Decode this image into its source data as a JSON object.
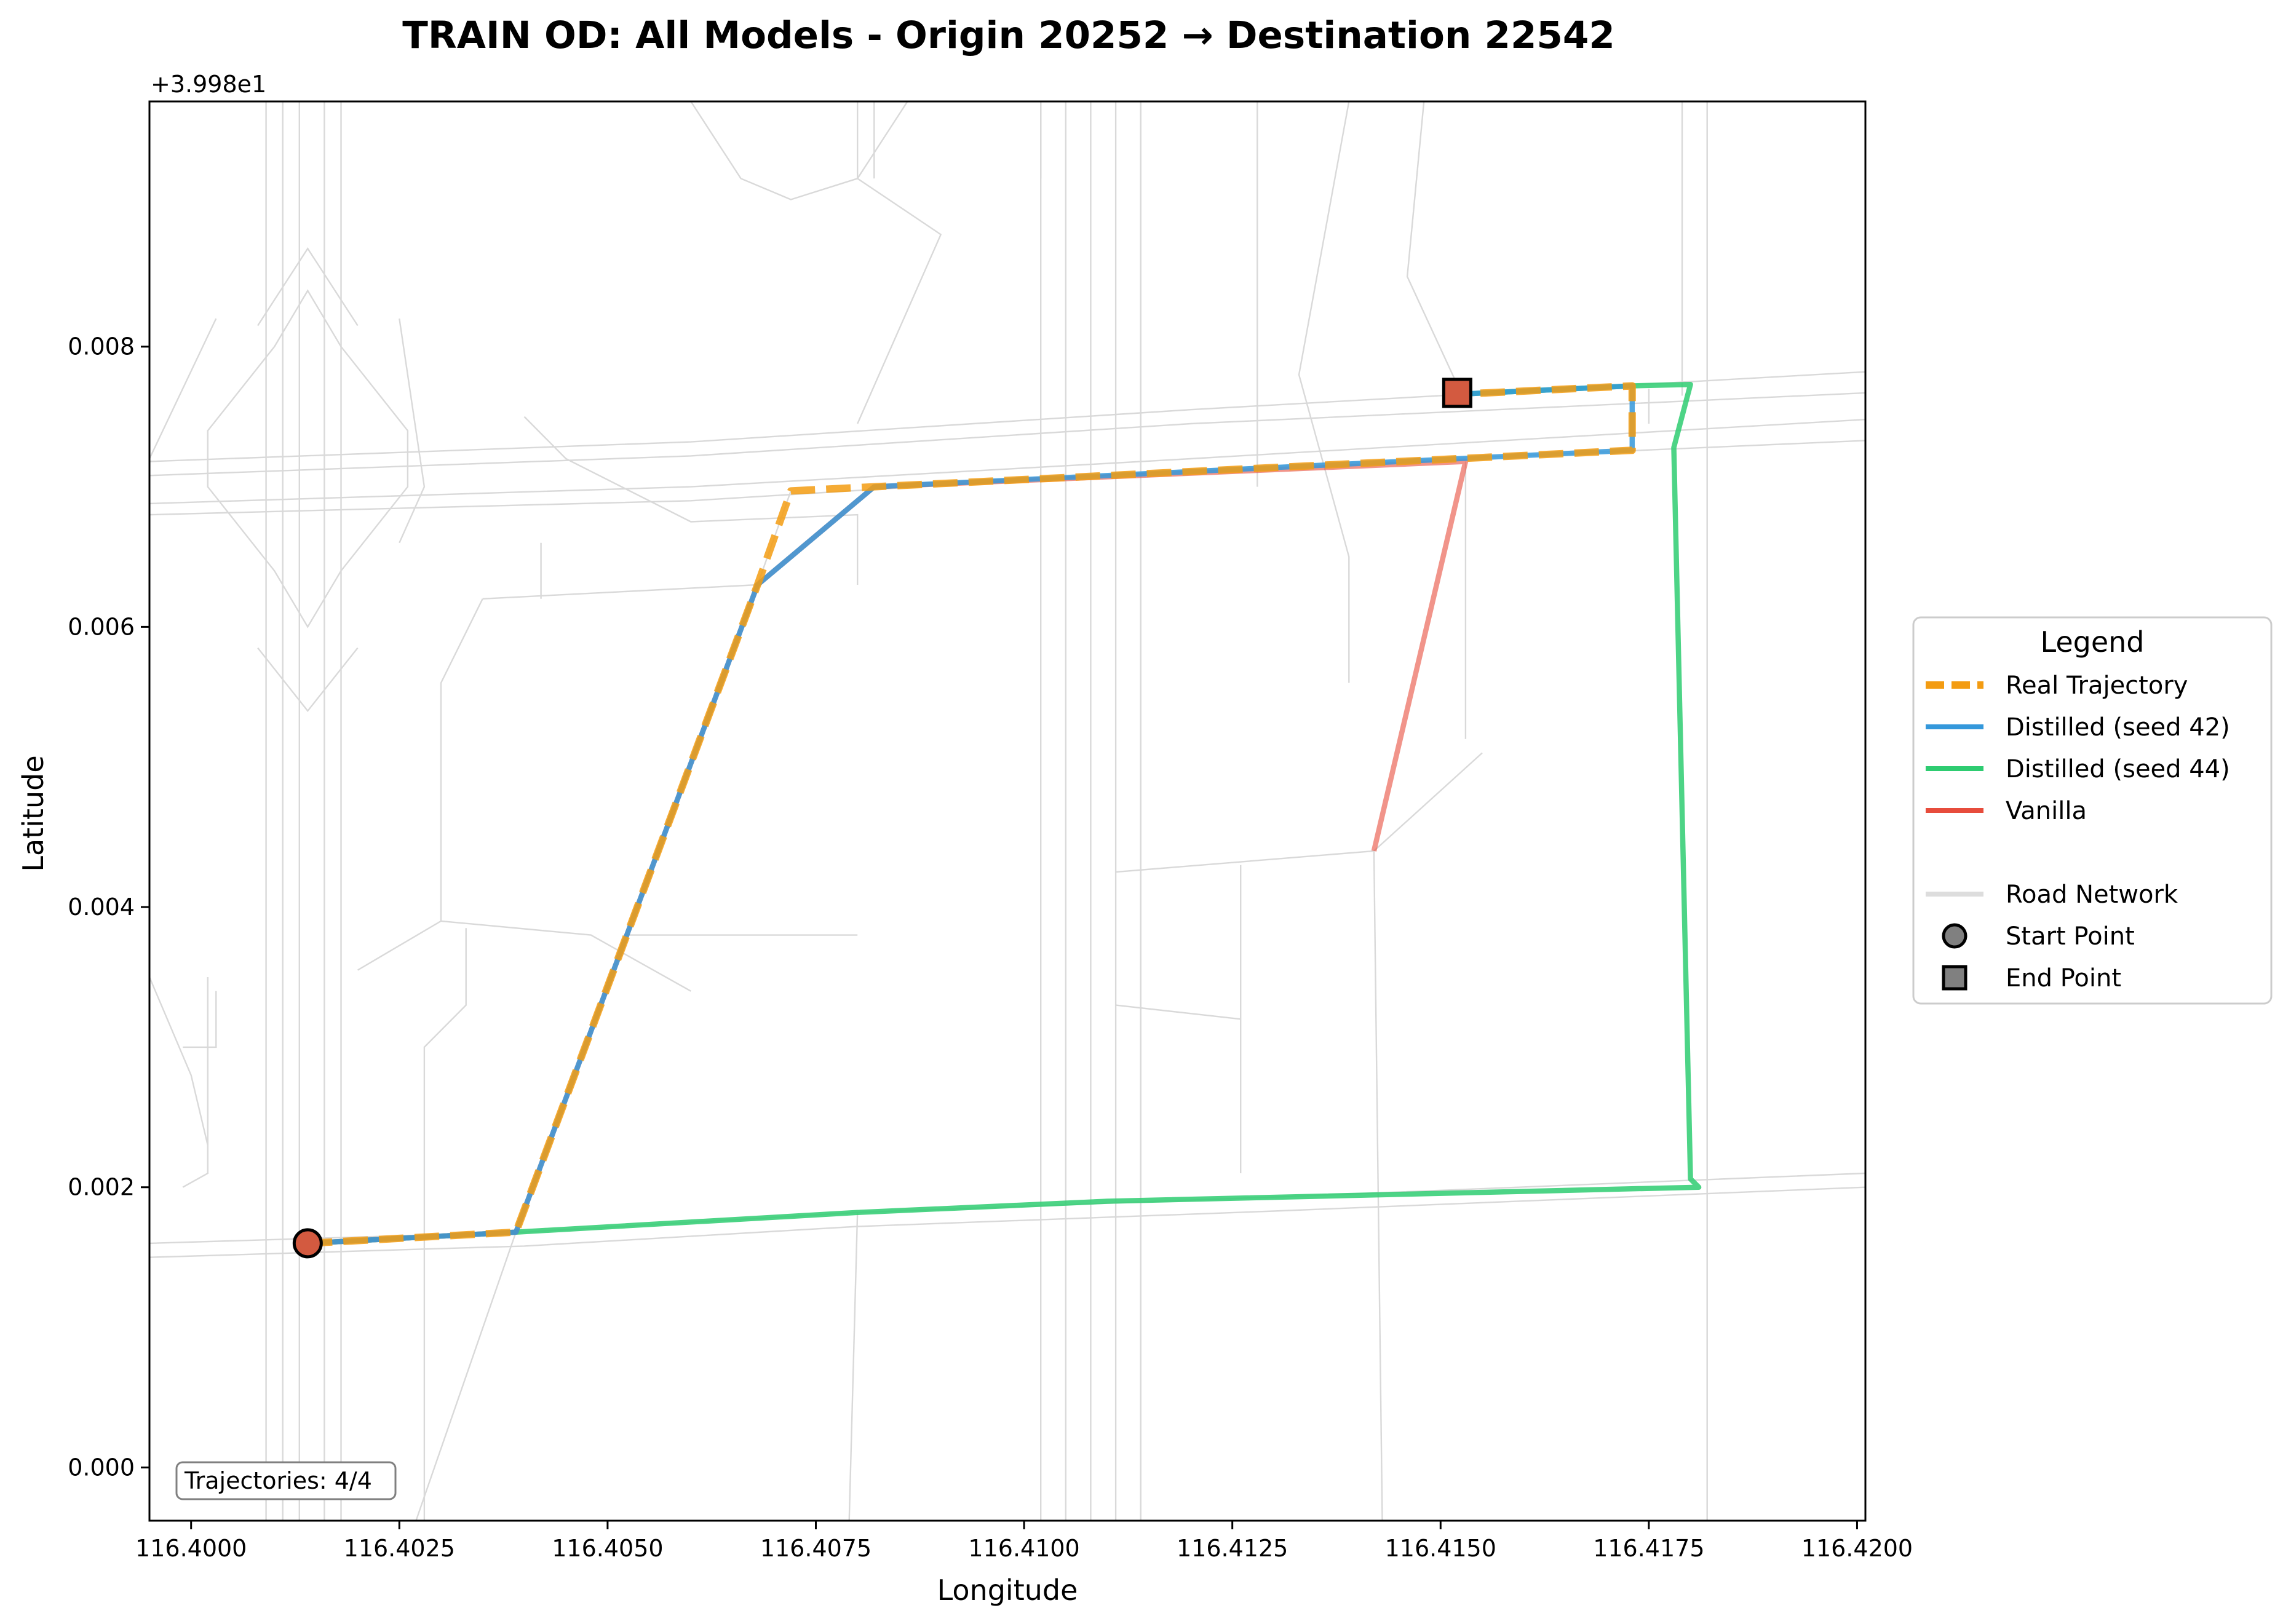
{
  "chart_data": {
    "type": "line",
    "title": "TRAIN OD: All Models - Origin 20252 → Destination 22542",
    "xlabel": "Longitude",
    "ylabel": "Latitude",
    "y_offset_label": "+3.998e1",
    "xlim": [
      116.3995,
      116.4201
    ],
    "ylim": [
      -0.00038,
      0.00975
    ],
    "x_ticks": [
      116.4,
      116.4025,
      116.405,
      116.4075,
      116.41,
      116.4125,
      116.415,
      116.4175,
      116.42
    ],
    "x_tick_labels": [
      "116.4000",
      "116.4025",
      "116.4050",
      "116.4075",
      "116.4100",
      "116.4125",
      "116.4150",
      "116.4175",
      "116.4200"
    ],
    "y_ticks": [
      0.0,
      0.002,
      0.004,
      0.006,
      0.008
    ],
    "y_tick_labels": [
      "0.000",
      "0.002",
      "0.004",
      "0.006",
      "0.008"
    ],
    "grid": false,
    "legend": {
      "title": "Legend",
      "placement": "outside-right",
      "entries": [
        {
          "label": "Real Trajectory",
          "kind": "dashed-line",
          "color": "#f39c12"
        },
        {
          "label": "Distilled (seed 42)",
          "kind": "line",
          "color": "#3498db"
        },
        {
          "label": "Distilled (seed 44)",
          "kind": "line",
          "color": "#2ecc71"
        },
        {
          "label": "Vanilla",
          "kind": "line",
          "color": "#e74c3c"
        },
        {
          "label": "",
          "kind": "spacer"
        },
        {
          "label": "Road Network",
          "kind": "line",
          "color": "#dddddd"
        },
        {
          "label": "Start Point",
          "kind": "circle",
          "color": "#808080"
        },
        {
          "label": "End Point",
          "kind": "square",
          "color": "#808080"
        }
      ]
    },
    "annotation": "Trajectories: 4/4",
    "series": [
      {
        "name": "Distilled (seed 44)",
        "color": "#2ecc71",
        "style": "solid",
        "x": [
          116.4014,
          116.4039,
          116.408,
          116.411,
          116.4181,
          116.418,
          116.4178,
          116.418,
          116.4173,
          116.4152
        ],
        "y": [
          0.0016,
          0.00168,
          0.00182,
          0.0019,
          0.002,
          0.00206,
          0.00728,
          0.00773,
          0.00772,
          0.00766
        ]
      },
      {
        "name": "Vanilla",
        "color": "#e74c3c",
        "style": "solid",
        "x": [
          116.4014,
          116.4039,
          116.4068,
          116.4082,
          116.4153,
          116.4142
        ],
        "y": [
          0.0016,
          0.00168,
          0.0063,
          0.007,
          0.00718,
          0.0044
        ]
      },
      {
        "name": "Distilled (seed 42)",
        "color": "#3498db",
        "style": "solid",
        "x": [
          116.4014,
          116.4039,
          116.4068,
          116.4082,
          116.4173,
          116.4173,
          116.4152
        ],
        "y": [
          0.0016,
          0.00168,
          0.0063,
          0.007,
          0.00726,
          0.00772,
          0.00766
        ]
      },
      {
        "name": "Real Trajectory",
        "color": "#f39c12",
        "style": "dashed",
        "x": [
          116.4014,
          116.4039,
          116.4068,
          116.4072,
          116.4082,
          116.4173,
          116.4173,
          116.4152
        ],
        "y": [
          0.0016,
          0.00168,
          0.0063,
          0.00697,
          0.007,
          0.00726,
          0.00772,
          0.00766
        ]
      }
    ],
    "start_point": {
      "x": 116.4014,
      "y": 0.0016
    },
    "end_point": {
      "x": 116.4152,
      "y": 0.00767
    },
    "road_network": [
      [
        [
          116.3995,
          0.0016
        ],
        [
          116.404,
          0.00168
        ],
        [
          116.408,
          0.00182
        ],
        [
          116.413,
          0.00193
        ],
        [
          116.4201,
          0.0021
        ]
      ],
      [
        [
          116.3995,
          0.0015
        ],
        [
          116.404,
          0.00158
        ],
        [
          116.408,
          0.00172
        ],
        [
          116.413,
          0.00183
        ],
        [
          116.4201,
          0.002
        ]
      ],
      [
        [
          116.3995,
          0.00718
        ],
        [
          116.406,
          0.00732
        ],
        [
          116.412,
          0.00755
        ],
        [
          116.4201,
          0.00782
        ]
      ],
      [
        [
          116.3995,
          0.00708
        ],
        [
          116.406,
          0.00722
        ],
        [
          116.412,
          0.00745
        ],
        [
          116.4201,
          0.00767
        ]
      ],
      [
        [
          116.3995,
          0.00688
        ],
        [
          116.406,
          0.007
        ],
        [
          116.412,
          0.0072
        ],
        [
          116.4201,
          0.00748
        ]
      ],
      [
        [
          116.3995,
          0.0068
        ],
        [
          116.406,
          0.0069
        ],
        [
          116.412,
          0.00712
        ],
        [
          116.4201,
          0.00733
        ]
      ],
      [
        [
          116.4011,
          -0.00038
        ],
        [
          116.4011,
          0.00975
        ]
      ],
      [
        [
          116.4013,
          -0.00038
        ],
        [
          116.4013,
          0.00975
        ]
      ],
      [
        [
          116.4016,
          -0.00038
        ],
        [
          116.4016,
          0.00975
        ]
      ],
      [
        [
          116.4018,
          -0.00038
        ],
        [
          116.4018,
          0.00975
        ]
      ],
      [
        [
          116.4009,
          -0.00038
        ],
        [
          116.4009,
          0.00975
        ]
      ],
      [
        [
          116.4102,
          -0.00038
        ],
        [
          116.4102,
          0.00975
        ]
      ],
      [
        [
          116.4105,
          -0.00038
        ],
        [
          116.4105,
          0.00975
        ]
      ],
      [
        [
          116.4108,
          -0.00038
        ],
        [
          116.4108,
          0.00975
        ]
      ],
      [
        [
          116.4111,
          -0.00038
        ],
        [
          116.4111,
          0.00975
        ]
      ],
      [
        [
          116.4114,
          -0.00038
        ],
        [
          116.4114,
          0.00975
        ]
      ],
      [
        [
          116.4179,
          0.00765
        ],
        [
          116.4179,
          0.00975
        ]
      ],
      [
        [
          116.4182,
          -0.00038
        ],
        [
          116.4182,
          0.00975
        ]
      ],
      [
        [
          116.4027,
          -0.00038
        ],
        [
          116.4039,
          0.00168
        ],
        [
          116.4068,
          0.0063
        ],
        [
          116.4072,
          0.00697
        ]
      ],
      [
        [
          116.404,
          0.0075
        ],
        [
          116.4045,
          0.0072
        ],
        [
          116.406,
          0.00675
        ],
        [
          116.408,
          0.0068
        ],
        [
          116.408,
          0.0063
        ]
      ],
      [
        [
          116.4042,
          0.0066
        ],
        [
          116.4042,
          0.0062
        ]
      ],
      [
        [
          116.4035,
          0.0062
        ],
        [
          116.4068,
          0.0063
        ]
      ],
      [
        [
          116.4035,
          0.0062
        ],
        [
          116.403,
          0.0056
        ],
        [
          116.403,
          0.0039
        ]
      ],
      [
        [
          116.403,
          0.0039
        ],
        [
          116.402,
          0.00355
        ]
      ],
      [
        [
          116.403,
          0.0039
        ],
        [
          116.4048,
          0.0038
        ],
        [
          116.406,
          0.0034
        ]
      ],
      [
        [
          116.4052,
          0.0038
        ],
        [
          116.408,
          0.0038
        ]
      ],
      [
        [
          116.4033,
          0.00385
        ],
        [
          116.4033,
          0.0033
        ],
        [
          116.4028,
          0.003
        ],
        [
          116.4028,
          -0.00038
        ]
      ],
      [
        [
          116.408,
          0.00975
        ],
        [
          116.408,
          0.0092
        ],
        [
          116.409,
          0.0088
        ],
        [
          116.408,
          0.00745
        ]
      ],
      [
        [
          116.4082,
          0.00975
        ],
        [
          116.4082,
          0.0092
        ]
      ],
      [
        [
          116.4102,
          0.00975
        ],
        [
          116.4102,
          0.0092
        ]
      ],
      [
        [
          116.4128,
          0.00975
        ],
        [
          116.4128,
          0.007
        ]
      ],
      [
        [
          116.4139,
          0.00975
        ],
        [
          116.4133,
          0.0078
        ],
        [
          116.4139,
          0.0065
        ],
        [
          116.4139,
          0.0056
        ]
      ],
      [
        [
          116.4148,
          0.00975
        ],
        [
          116.4146,
          0.0085
        ],
        [
          116.4153,
          0.0076
        ]
      ],
      [
        [
          116.4153,
          0.00718
        ],
        [
          116.4153,
          0.0052
        ]
      ],
      [
        [
          116.4142,
          0.0044
        ],
        [
          116.4155,
          0.0051
        ]
      ],
      [
        [
          116.4142,
          0.0044
        ],
        [
          116.4143,
          -0.00038
        ]
      ],
      [
        [
          116.4111,
          0.00425
        ],
        [
          116.4142,
          0.0044
        ]
      ],
      [
        [
          116.4126,
          0.0043
        ],
        [
          116.4126,
          0.0021
        ]
      ],
      [
        [
          116.4111,
          0.0033
        ],
        [
          116.4126,
          0.0032
        ]
      ],
      [
        [
          116.4175,
          0.00745
        ],
        [
          116.4175,
          0.0077
        ]
      ],
      [
        [
          116.408,
          0.00182
        ],
        [
          116.4079,
          -0.00038
        ]
      ],
      [
        [
          116.4003,
          0.0034
        ],
        [
          116.4003,
          0.003
        ],
        [
          116.3999,
          0.003
        ]
      ],
      [
        [
          116.4002,
          0.0035
        ],
        [
          116.4002,
          0.0021
        ],
        [
          116.3999,
          0.002
        ]
      ],
      [
        [
          116.3995,
          0.0035
        ],
        [
          116.4,
          0.0028
        ],
        [
          116.4002,
          0.0023
        ]
      ],
      [
        [
          116.401,
          0.008
        ],
        [
          116.4002,
          0.0074
        ],
        [
          116.4002,
          0.007
        ],
        [
          116.401,
          0.0064
        ],
        [
          116.4014,
          0.006
        ],
        [
          116.4018,
          0.0064
        ],
        [
          116.4026,
          0.007
        ],
        [
          116.4026,
          0.0074
        ],
        [
          116.4018,
          0.008
        ],
        [
          116.4014,
          0.0084
        ],
        [
          116.401,
          0.008
        ]
      ],
      [
        [
          116.4008,
          0.00815
        ],
        [
          116.4014,
          0.0087
        ],
        [
          116.402,
          0.00815
        ]
      ],
      [
        [
          116.4008,
          0.00585
        ],
        [
          116.4014,
          0.0054
        ],
        [
          116.402,
          0.00585
        ]
      ],
      [
        [
          116.4003,
          0.0082
        ],
        [
          116.3995,
          0.0072
        ]
      ],
      [
        [
          116.4025,
          0.0082
        ],
        [
          116.4028,
          0.007
        ],
        [
          116.4025,
          0.0066
        ]
      ],
      [
        [
          116.406,
          0.00975
        ],
        [
          116.4066,
          0.0092
        ],
        [
          116.4072,
          0.00905
        ],
        [
          116.408,
          0.0092
        ],
        [
          116.4086,
          0.00975
        ]
      ]
    ]
  }
}
